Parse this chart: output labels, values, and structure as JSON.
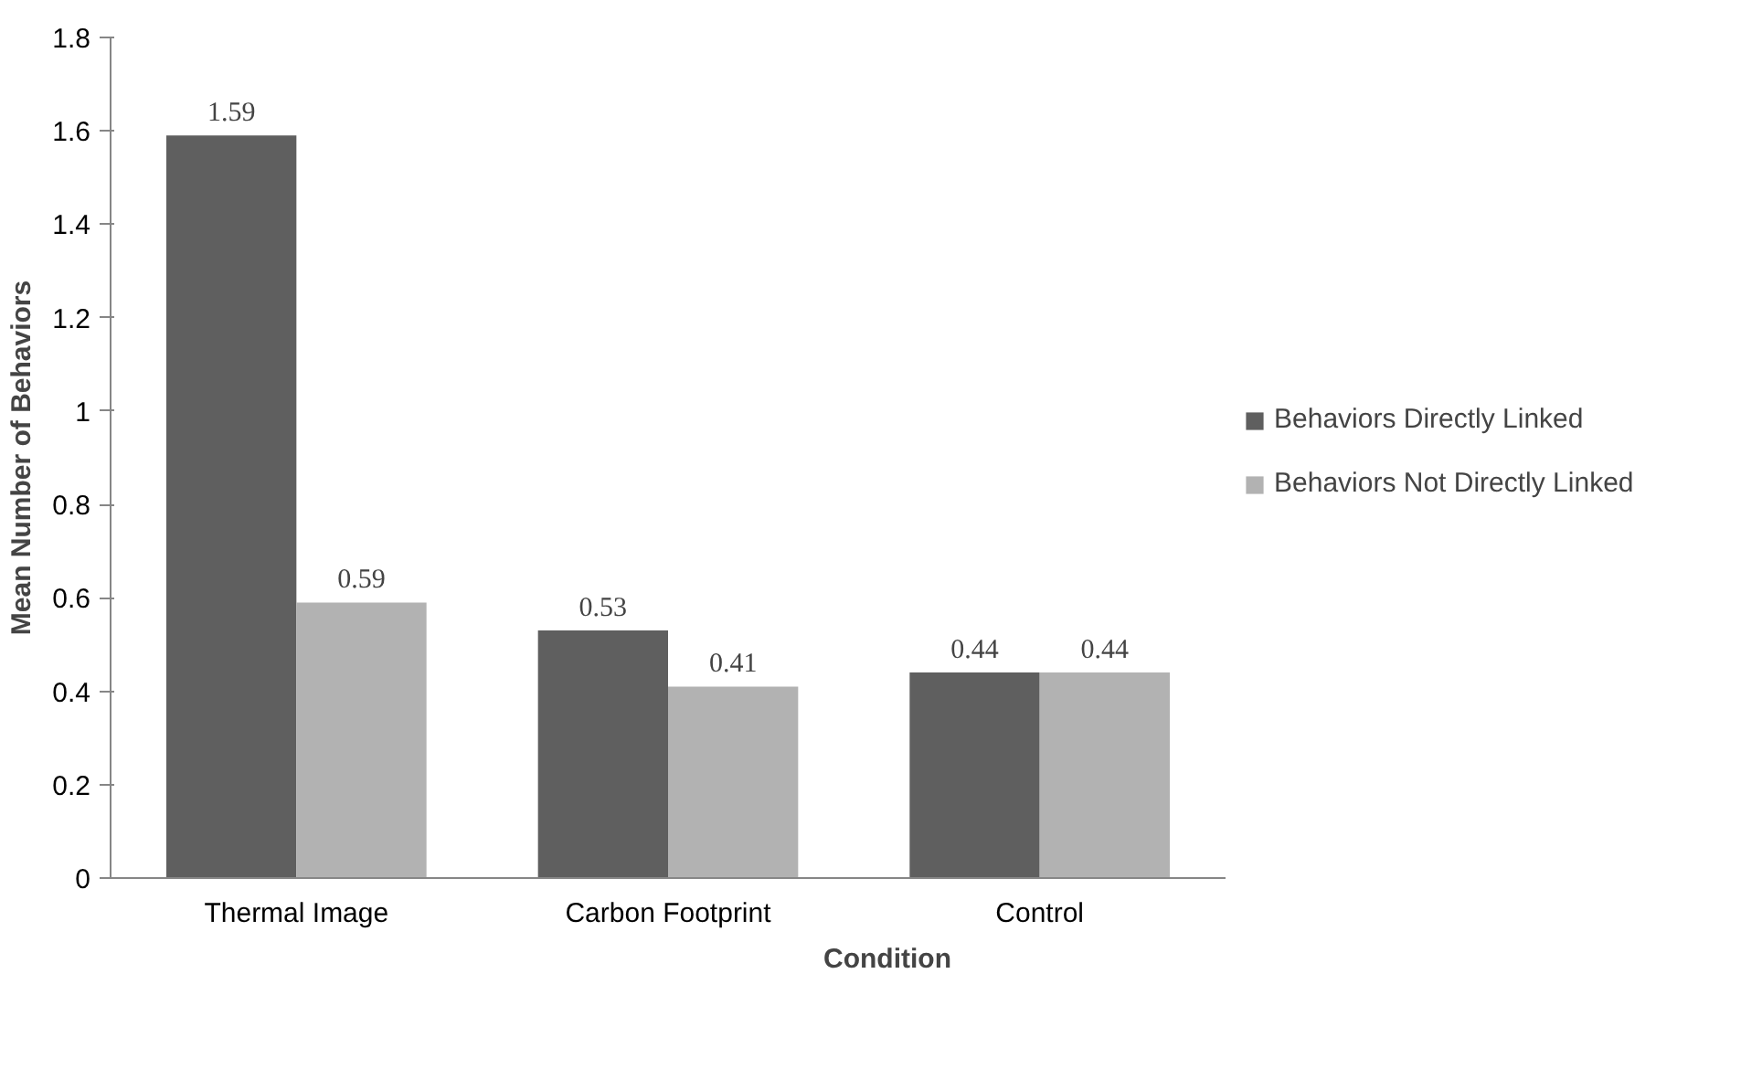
{
  "chart_data": {
    "type": "bar",
    "xlabel": "Condition",
    "ylabel": "Mean Number of Behaviors",
    "categories": [
      "Thermal Image",
      "Carbon Footprint",
      "Control"
    ],
    "series": [
      {
        "name": "Behaviors Directly Linked",
        "color": "#5f5f5f",
        "values": [
          1.59,
          0.53,
          0.44
        ]
      },
      {
        "name": "Behaviors Not Directly Linked",
        "color": "#b2b2b2",
        "values": [
          0.59,
          0.41,
          0.44
        ]
      }
    ],
    "ylim": [
      0,
      1.8
    ],
    "yticks": [
      0,
      0.2,
      0.4,
      0.6,
      0.8,
      1,
      1.2,
      1.4,
      1.6,
      1.8
    ],
    "data_labels": true,
    "grid": false,
    "legend": "right"
  }
}
